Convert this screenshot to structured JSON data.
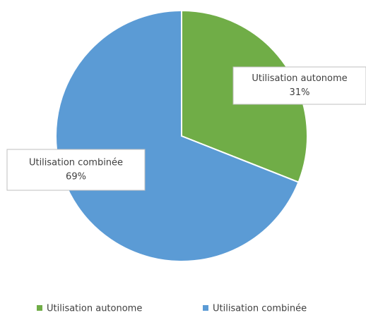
{
  "chart_data": {
    "type": "pie",
    "categories": [
      "Utilisation autonome",
      "Utilisation combinée"
    ],
    "values": [
      31,
      69
    ],
    "value_labels": [
      "31%",
      "69%"
    ],
    "colors": [
      "#70ad47",
      "#5b9bd5"
    ],
    "legend": "bottom"
  }
}
